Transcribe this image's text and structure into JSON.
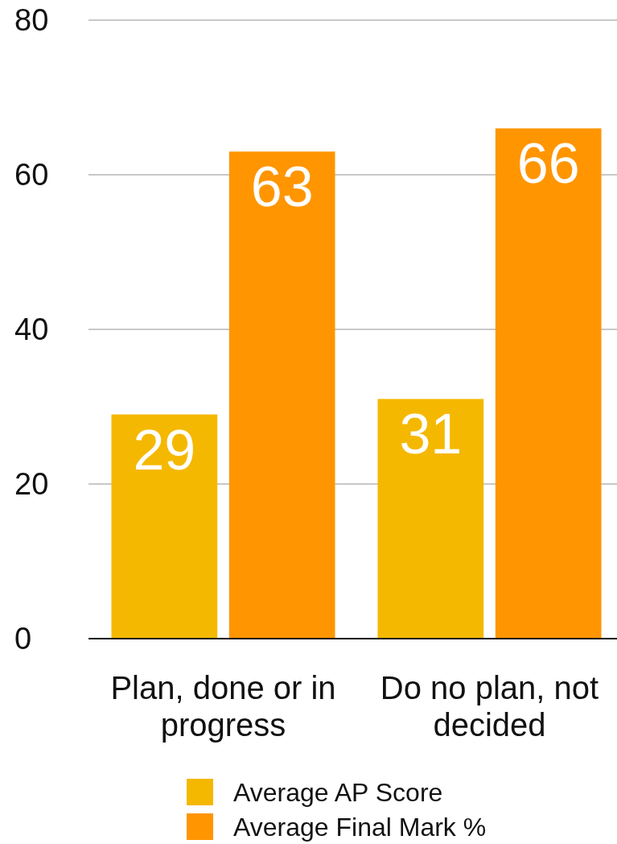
{
  "chart_data": {
    "type": "bar",
    "categories": [
      "Plan, done or in progress",
      "Do no plan, not decided"
    ],
    "series": [
      {
        "name": "Average AP Score",
        "color": "#f5b800",
        "values": [
          29,
          31
        ]
      },
      {
        "name": "Average Final Mark %",
        "color": "#ff9500",
        "values": [
          63,
          66
        ]
      }
    ],
    "ylim": [
      0,
      80
    ],
    "yticks": [
      0,
      20,
      40,
      60,
      80
    ],
    "grid": "y",
    "legend": "bottom",
    "data_labels": true
  }
}
